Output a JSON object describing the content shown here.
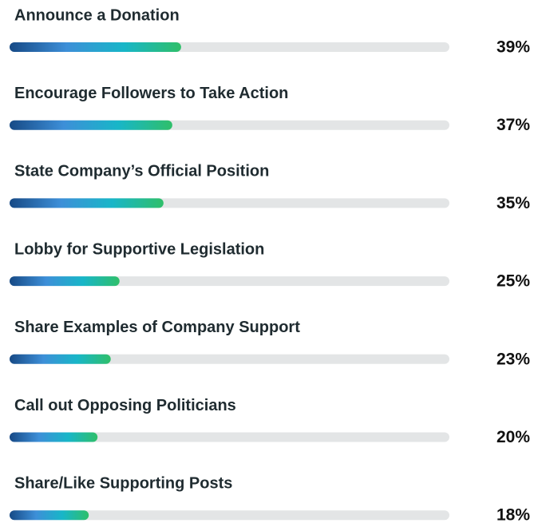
{
  "chart_data": {
    "type": "bar",
    "orientation": "horizontal",
    "categories": [
      "Announce a Donation",
      "Encourage Followers to Take Action",
      "State Company’s Official Position",
      "Lobby for Supportive Legislation",
      "Share Examples of Company Support",
      "Call out Opposing Politicians",
      "Share/Like Supporting Posts"
    ],
    "values": [
      39,
      37,
      35,
      25,
      23,
      20,
      18
    ],
    "value_labels": [
      "39%",
      "37%",
      "35%",
      "25%",
      "23%",
      "20%",
      "18%"
    ],
    "xlim": [
      0,
      100
    ],
    "color": [
      "#174a86",
      "#3d8fd8",
      "#18b6c8",
      "#2fbf6a"
    ]
  }
}
